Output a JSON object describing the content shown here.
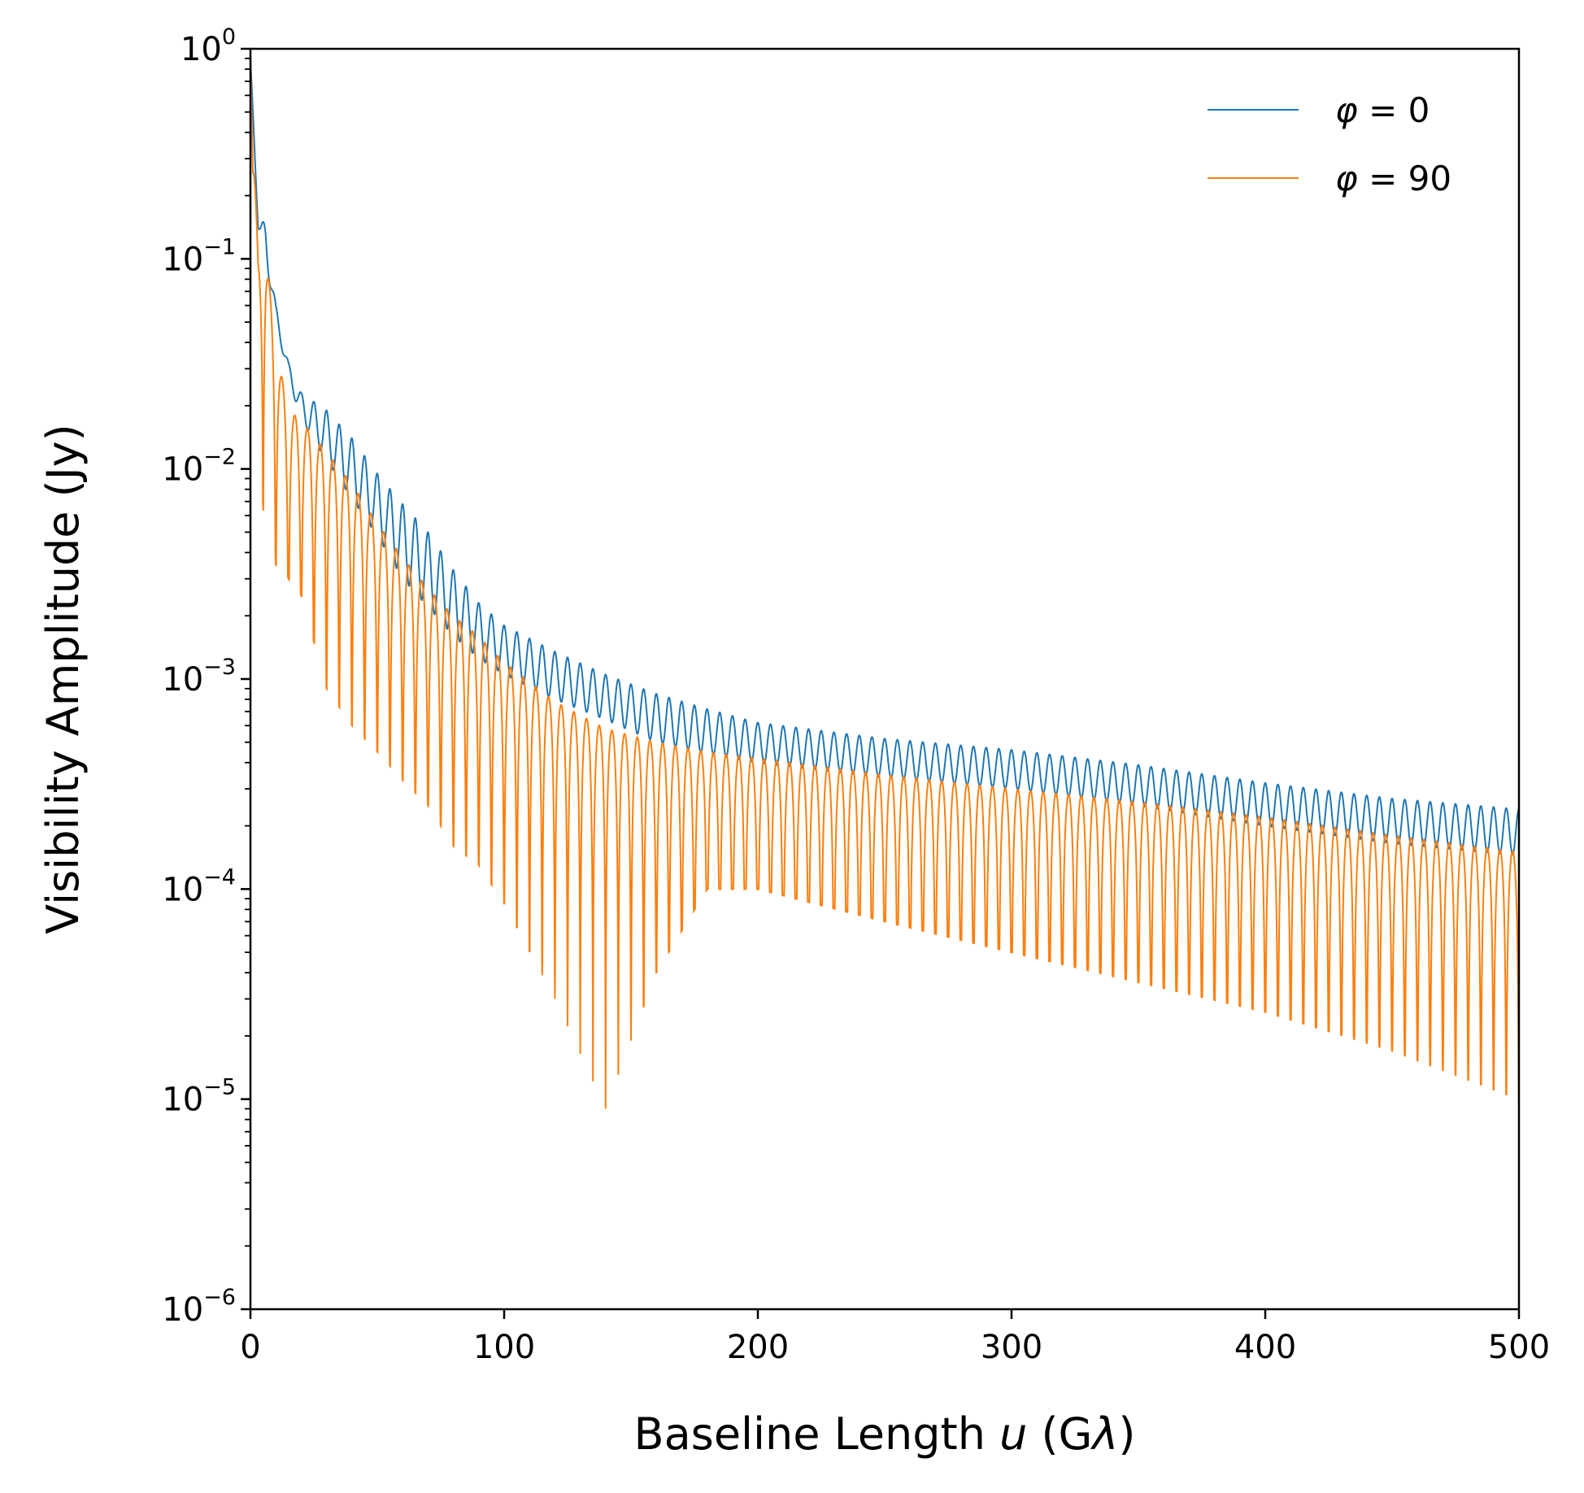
{
  "chart_data": {
    "type": "line",
    "title": "",
    "xlabel": "Baseline Length u (Gλ)",
    "xlabel_parts": {
      "before": "Baseline Length ",
      "var": "u",
      "after": " (G",
      "lambda": "λ",
      "close": ")"
    },
    "ylabel": "Visibility Amplitude (Jy)",
    "xlim": [
      0,
      500
    ],
    "ylim": [
      1e-06,
      1
    ],
    "yscale": "log",
    "grid": false,
    "legend_position": "top-right",
    "x_ticks": [
      {
        "value": 0,
        "label": "0"
      },
      {
        "value": 100,
        "label": "100"
      },
      {
        "value": 200,
        "label": "200"
      },
      {
        "value": 300,
        "label": "300"
      },
      {
        "value": 400,
        "label": "400"
      },
      {
        "value": 500,
        "label": "500"
      }
    ],
    "y_ticks": [
      {
        "value": 1,
        "base": "10",
        "exp": "0"
      },
      {
        "value": 0.1,
        "base": "10",
        "exp": "−1"
      },
      {
        "value": 0.01,
        "base": "10",
        "exp": "−2"
      },
      {
        "value": 0.001,
        "base": "10",
        "exp": "−3"
      },
      {
        "value": 0.0001,
        "base": "10",
        "exp": "−4"
      },
      {
        "value": 1e-05,
        "base": "10",
        "exp": "−5"
      },
      {
        "value": 1e-06,
        "base": "10",
        "exp": "−6"
      }
    ],
    "series": [
      {
        "name": "φ = 0",
        "legend_symbol": "φ",
        "legend_value": "= 0",
        "color": "#1f77b4",
        "fringe_spacing": 5.0,
        "envelope": {
          "x": [
            0,
            3,
            6,
            10,
            15,
            20,
            30,
            40,
            50,
            60,
            70,
            80,
            90,
            100,
            120,
            140,
            160,
            180,
            200,
            250,
            300,
            350,
            400,
            450,
            500
          ],
          "upper": [
            0.9,
            0.15,
            0.15,
            0.06,
            0.032,
            0.023,
            0.019,
            0.014,
            0.0095,
            0.0068,
            0.005,
            0.0033,
            0.0023,
            0.0018,
            0.00135,
            0.00105,
            0.00085,
            0.00072,
            0.00062,
            0.00052,
            0.00046,
            0.00039,
            0.00032,
            0.00027,
            0.00024
          ],
          "lower": [
            0.9,
            0.14,
            0.1,
            0.05,
            0.027,
            0.017,
            0.011,
            0.0072,
            0.0048,
            0.003,
            0.0022,
            0.0016,
            0.00125,
            0.00105,
            0.0008,
            0.00064,
            0.0005,
            0.00044,
            0.0004,
            0.00034,
            0.0003,
            0.00025,
            0.0002,
            0.000165,
            0.000145
          ]
        }
      },
      {
        "name": "φ = 90",
        "legend_symbol": "φ",
        "legend_value": "= 90",
        "color": "#ff7f0e",
        "fringe_spacing": 5.0,
        "envelope": {
          "x": [
            0,
            3,
            6,
            10,
            15,
            20,
            30,
            40,
            50,
            60,
            70,
            80,
            90,
            100,
            120,
            140,
            160,
            180,
            200,
            250,
            300,
            350,
            400,
            450,
            500
          ],
          "upper": [
            0.9,
            0.1,
            0.11,
            0.038,
            0.019,
            0.017,
            0.012,
            0.0085,
            0.0055,
            0.0038,
            0.0027,
            0.002,
            0.0016,
            0.0012,
            0.00078,
            0.00058,
            0.0005,
            0.00045,
            0.00042,
            0.00035,
            0.0003,
            0.00026,
            0.00022,
            0.00018,
            0.00015
          ],
          "minima": [
            0.9,
            0.018,
            0.004,
            0.0035,
            0.003,
            0.0025,
            0.0009,
            0.0006,
            0.00045,
            0.00033,
            0.00025,
            0.00016,
            0.00013,
            8.5e-05,
            3e-05,
            9e-06,
            4e-05,
            0.0001,
            0.0001,
            7e-05,
            5e-05,
            3.6e-05,
            2.6e-05,
            1.7e-05,
            1e-05
          ]
        }
      }
    ]
  }
}
